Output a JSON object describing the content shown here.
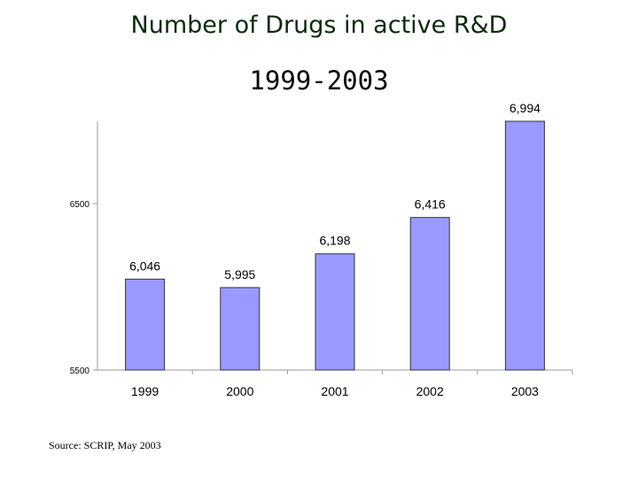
{
  "source_note": "Source: SCRIP, May 2003",
  "colors": {
    "bar_fill": "#9999ff",
    "bar_stroke": "#333333",
    "axis": "#999999"
  },
  "chart_data": {
    "type": "bar",
    "title": "Number of Drugs in active R&D",
    "subtitle": "1999-2003",
    "categories": [
      "1999",
      "2000",
      "2001",
      "2002",
      "2003"
    ],
    "values": [
      6046,
      5995,
      6198,
      6416,
      6994
    ],
    "value_labels": [
      "6,046",
      "5,995",
      "6,198",
      "6,416",
      "6,994"
    ],
    "y_ticks": [
      5500,
      6500
    ],
    "y_tick_labels": [
      "5500",
      "6500"
    ],
    "ylim": [
      5500,
      6994
    ],
    "grid": false,
    "legend": "none"
  }
}
